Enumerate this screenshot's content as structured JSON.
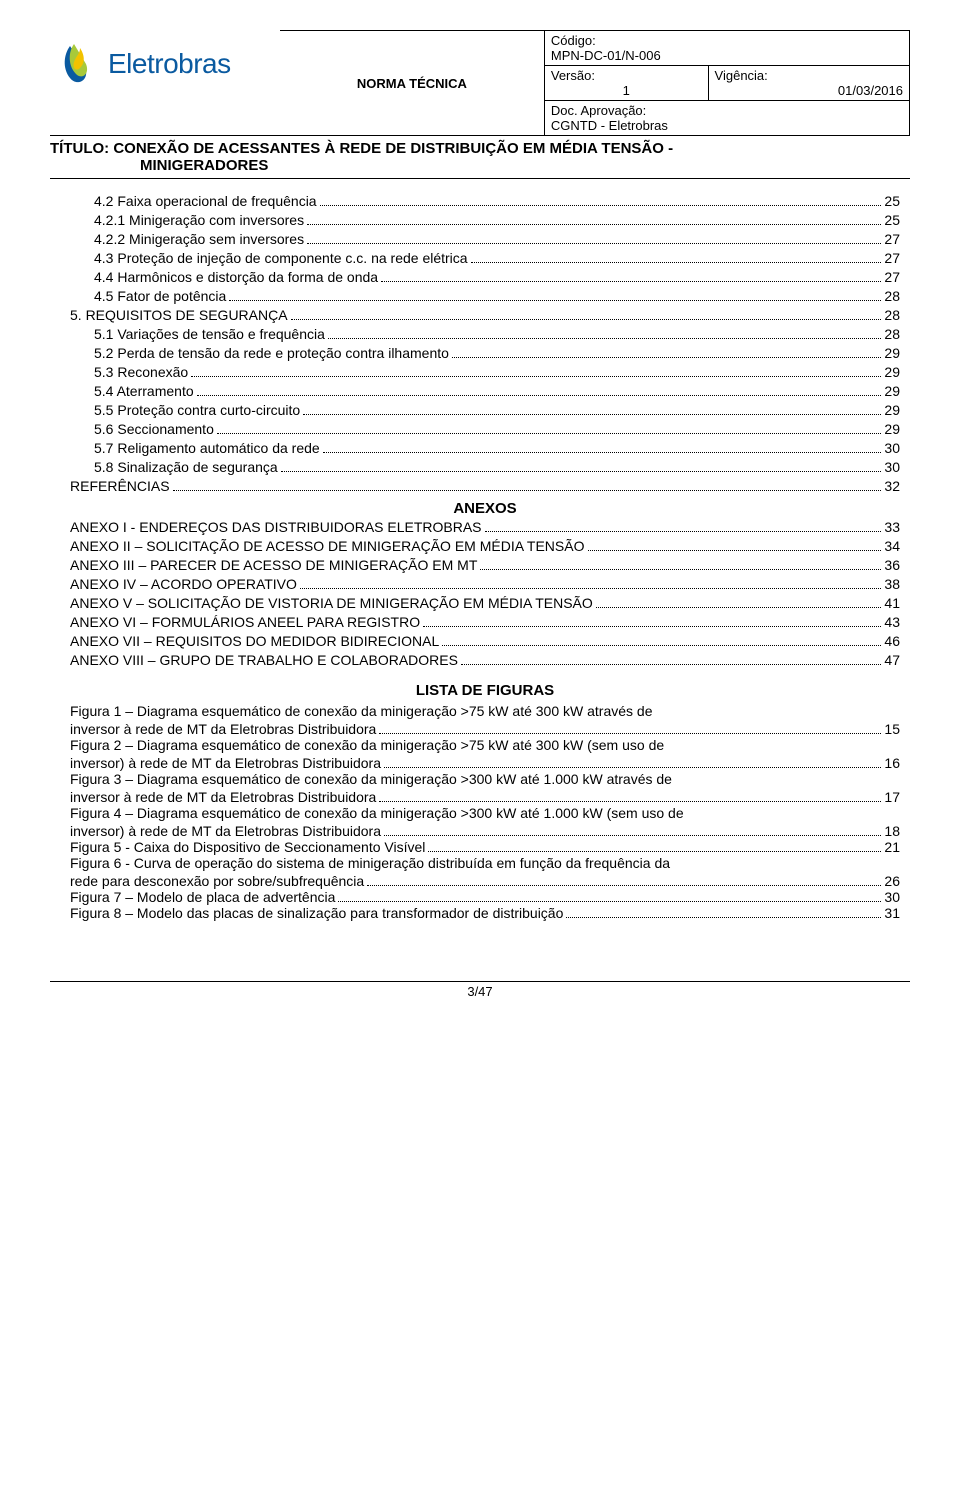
{
  "header": {
    "company": "Eletrobras",
    "norma": "NORMA TÉCNICA",
    "codigo_label": "Código:",
    "codigo": "MPN-DC-01/N-006",
    "versao_label": "Versão:",
    "versao": "1",
    "vigencia_label": "Vigência:",
    "vigencia": "01/03/2016",
    "aprov_label": "Doc. Aprovação:",
    "aprov": "CGNTD - Eletrobras",
    "titulo_prefix": "TÍTULO: ",
    "titulo_line1": "CONEXÃO DE ACESSANTES À REDE DE DISTRIBUIÇÃO EM MÉDIA TENSÃO -",
    "titulo_line2": "MINIGERADORES"
  },
  "toc": [
    {
      "indent": 1,
      "text": "4.2 Faixa operacional de frequência",
      "page": "25"
    },
    {
      "indent": 1,
      "text": "4.2.1 Minigeração com inversores",
      "page": "25"
    },
    {
      "indent": 1,
      "text": "4.2.2 Minigeração sem inversores",
      "page": "27"
    },
    {
      "indent": 1,
      "text": "4.3 Proteção de injeção de componente c.c. na rede elétrica",
      "page": "27"
    },
    {
      "indent": 1,
      "text": "4.4 Harmônicos e distorção da forma de onda",
      "page": "27"
    },
    {
      "indent": 1,
      "text": "4.5 Fator de potência",
      "page": "28"
    },
    {
      "indent": 0,
      "text": "5. REQUISITOS DE SEGURANÇA",
      "page": "28"
    },
    {
      "indent": 1,
      "text": "5.1 Variações de tensão e frequência",
      "page": "28"
    },
    {
      "indent": 1,
      "text": "5.2 Perda de tensão da rede e proteção contra ilhamento",
      "page": "29"
    },
    {
      "indent": 1,
      "text": "5.3 Reconexão",
      "page": "29"
    },
    {
      "indent": 1,
      "text": "5.4 Aterramento",
      "page": "29"
    },
    {
      "indent": 1,
      "text": "5.5 Proteção contra curto-circuito",
      "page": "29"
    },
    {
      "indent": 1,
      "text": "5.6 Seccionamento",
      "page": "29"
    },
    {
      "indent": 1,
      "text": "5.7 Religamento automático da rede",
      "page": "30"
    },
    {
      "indent": 1,
      "text": "5.8 Sinalização de segurança",
      "page": "30"
    },
    {
      "indent": 0,
      "text": "REFERÊNCIAS",
      "page": "32"
    }
  ],
  "anexos_title": "ANEXOS",
  "anexos": [
    {
      "text": "ANEXO I - ENDEREÇOS DAS DISTRIBUIDORAS ELETROBRAS",
      "page": "33"
    },
    {
      "text": "ANEXO II – SOLICITAÇÃO DE ACESSO DE MINIGERAÇÃO EM MÉDIA TENSÃO",
      "page": "34"
    },
    {
      "text": "ANEXO III – PARECER DE ACESSO DE MINIGERAÇÃO EM MT",
      "page": "36"
    },
    {
      "text": "ANEXO IV – ACORDO OPERATIVO",
      "page": "38"
    },
    {
      "text": "ANEXO V – SOLICITAÇÃO DE VISTORIA DE MINIGERAÇÃO EM MÉDIA TENSÃO",
      "page": "41"
    },
    {
      "text": "ANEXO VI – FORMULÁRIOS ANEEL PARA REGISTRO",
      "page": "43"
    },
    {
      "text": "ANEXO VII – REQUISITOS DO MEDIDOR BIDIRECIONAL",
      "page": "46"
    },
    {
      "text": "ANEXO VIII – GRUPO DE TRABALHO E COLABORADORES",
      "page": "47"
    }
  ],
  "lista_title": "LISTA DE FIGURAS",
  "figuras": [
    {
      "pre": "Figura 1 – Diagrama esquemático de conexão da minigeração >75 kW até 300 kW através de",
      "last": "inversor à rede de MT da Eletrobras Distribuidora",
      "page": "15"
    },
    {
      "pre": "Figura 2 – Diagrama esquemático de conexão da minigeração >75 kW até 300 kW (sem uso de",
      "last": "inversor) à rede de MT da Eletrobras Distribuidora",
      "page": "16"
    },
    {
      "pre": "Figura 3 – Diagrama esquemático de conexão da minigeração >300 kW até 1.000 kW através de",
      "last": "inversor à rede de MT da Eletrobras Distribuidora",
      "page": "17"
    },
    {
      "pre": "Figura 4 – Diagrama esquemático de conexão da minigeração >300 kW até 1.000 kW (sem uso de",
      "last": "inversor) à rede de MT da Eletrobras Distribuidora",
      "page": "18"
    },
    {
      "pre": "",
      "last": "Figura 5 - Caixa do Dispositivo de Seccionamento Visível",
      "page": "21"
    },
    {
      "pre": "Figura 6 - Curva de operação do sistema de minigeração distribuída em função da frequência da",
      "last": "rede para desconexão por sobre/subfrequência",
      "page": "26"
    },
    {
      "pre": "",
      "last": "Figura 7 – Modelo de placa de advertência",
      "page": "30"
    },
    {
      "pre": "",
      "last": "Figura 8 – Modelo das placas de sinalização para transformador de distribuição",
      "page": "31"
    }
  ],
  "footer": "3/47",
  "logo_colors": {
    "blue": "#0a5aa0",
    "green1": "#a8c93a",
    "green2": "#6daf2f",
    "yellow": "#f2c200"
  }
}
